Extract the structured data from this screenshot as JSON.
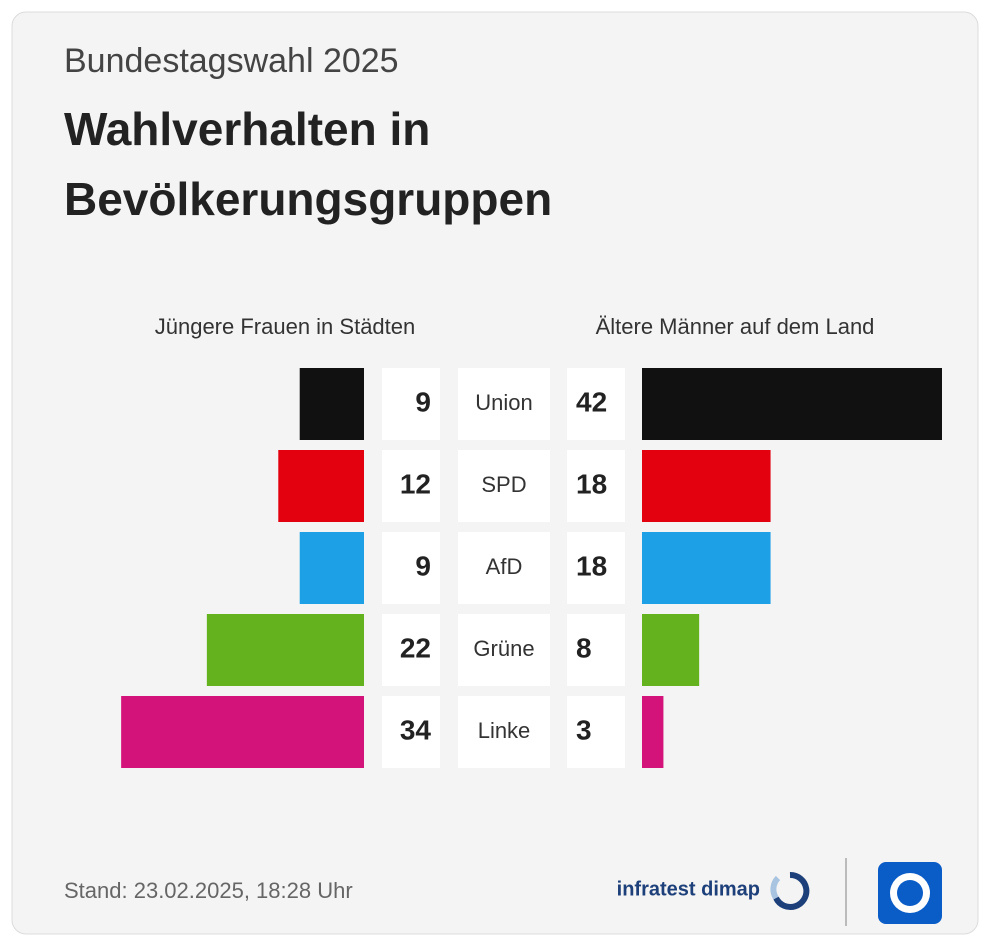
{
  "chart_data": {
    "type": "butterfly",
    "subtitle": "Bundestagswahl 2025",
    "title": "Wahlverhalten in Bevölkerungsgruppen",
    "categories": [
      "Union",
      "SPD",
      "AfD",
      "Grüne",
      "Linke"
    ],
    "colors": [
      "#111111",
      "#e3000f",
      "#1ea0e6",
      "#64b31e",
      "#d4137a"
    ],
    "series": [
      {
        "name": "Jüngere Frauen in Städten",
        "values": [
          9,
          12,
          9,
          22,
          34
        ]
      },
      {
        "name": "Ältere Männer auf dem Land",
        "values": [
          42,
          18,
          18,
          8,
          3
        ]
      }
    ],
    "footnote": "Stand: 23.02.2025, 18:28 Uhr",
    "source": "infratest dimap"
  }
}
